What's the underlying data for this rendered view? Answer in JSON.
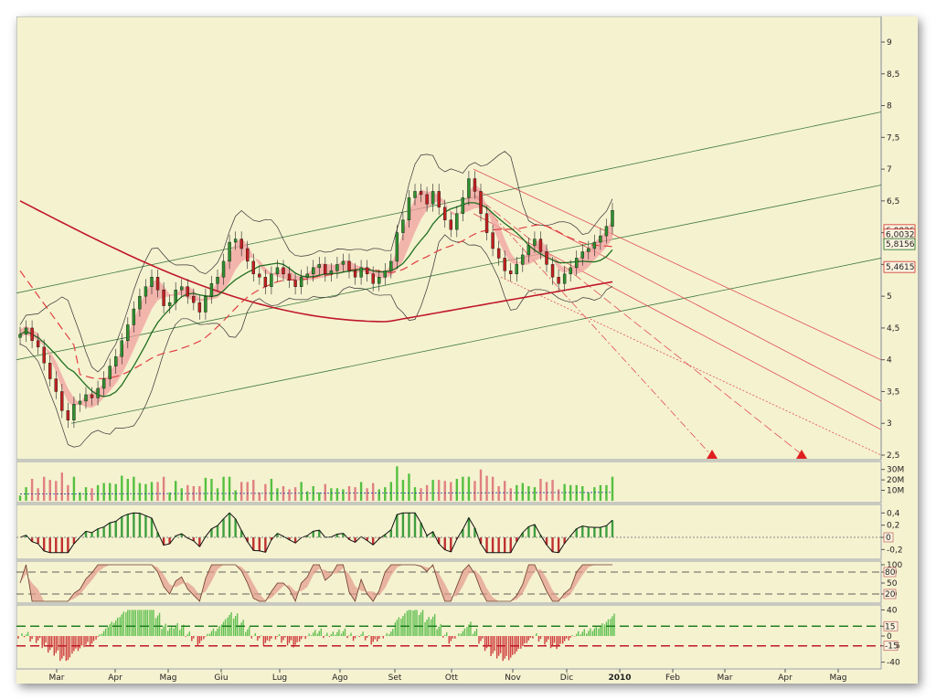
{
  "chart_data": [
    {
      "type": "candlestick",
      "panel": "price",
      "months": [
        "Mar",
        "Apr",
        "Mag",
        "Giu",
        "Lug",
        "Ago",
        "Set",
        "Ott",
        "Nov",
        "Dic",
        "2010",
        "Feb",
        "Mar",
        "Apr",
        "Mag"
      ],
      "y_ticks": [
        "9",
        "8,5",
        "8",
        "7,5",
        "7",
        "6,5",
        "6",
        "5,5",
        "5",
        "4,5",
        "4",
        "3,5",
        "3",
        "2,5"
      ],
      "y_tick_values": [
        9,
        8.5,
        8,
        7.5,
        7,
        6.5,
        6,
        5.5,
        5,
        4.5,
        4,
        3.5,
        3,
        2.5
      ],
      "ylim": [
        2.5,
        9.2
      ],
      "price_labels": [
        {
          "text": "6,0036",
          "value": 6.04,
          "color": "#d03030"
        },
        {
          "text": "6,0032",
          "value": 5.97,
          "color": "#d03030"
        },
        {
          "text": "5,8156",
          "value": 5.82,
          "color": "#1f6f1f"
        },
        {
          "text": "5,4615",
          "value": 5.46,
          "color": "#d03030"
        }
      ],
      "close_series": [
        4.4,
        4.5,
        4.3,
        4.2,
        3.95,
        3.7,
        3.5,
        3.2,
        3.05,
        3.3,
        3.35,
        3.45,
        3.4,
        3.55,
        3.7,
        3.9,
        4.05,
        4.3,
        4.55,
        4.8,
        5.0,
        5.15,
        5.3,
        5.1,
        4.85,
        4.9,
        5.1,
        5.15,
        5.0,
        4.9,
        4.75,
        5.0,
        5.2,
        5.3,
        5.55,
        5.85,
        5.9,
        5.75,
        5.55,
        5.35,
        5.3,
        5.15,
        5.35,
        5.45,
        5.35,
        5.25,
        5.15,
        5.3,
        5.35,
        5.45,
        5.5,
        5.35,
        5.4,
        5.5,
        5.55,
        5.4,
        5.3,
        5.45,
        5.35,
        5.2,
        5.3,
        5.4,
        5.55,
        6.0,
        6.2,
        6.55,
        6.65,
        6.6,
        6.45,
        6.65,
        6.4,
        6.2,
        6.05,
        6.3,
        6.55,
        6.85,
        6.65,
        6.3,
        6.0,
        5.75,
        5.6,
        5.4,
        5.35,
        5.5,
        5.65,
        5.8,
        5.9,
        5.7,
        5.5,
        5.3,
        5.2,
        5.35,
        5.45,
        5.6,
        5.7,
        5.75,
        5.85,
        5.95,
        6.1,
        6.35
      ],
      "volume_ticks": [
        "30M",
        "20M",
        "10M"
      ],
      "oscillator_ticks": [
        "0,4",
        "0,2",
        "0",
        "-0,2"
      ],
      "oscillator_marker": "0",
      "stochastic_ticks": [
        "100",
        "80",
        "50",
        "20"
      ],
      "stochastic_markers": [
        "80",
        "20"
      ],
      "bottom_ticks": [
        "40",
        "15",
        "0",
        "-15",
        "-40"
      ],
      "bottom_markers": [
        "15",
        "-15"
      ],
      "colors": {
        "bg": "#f5f2d0",
        "up": "#2f8f2f",
        "down": "#c02020",
        "ma_red": "#c0182a",
        "ma_green": "#1f6f1f"
      }
    }
  ]
}
